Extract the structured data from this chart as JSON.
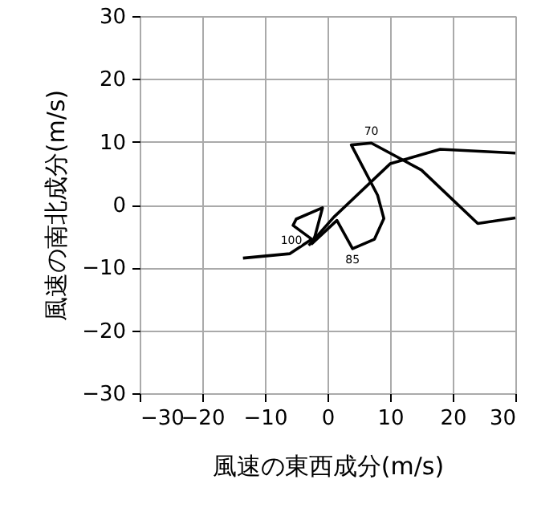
{
  "chart_data": {
    "type": "line",
    "xlabel": "風速の東西成分(m/s)",
    "ylabel": "風速の南北成分(m/s)",
    "xlim": [
      -30,
      30
    ],
    "ylim": [
      -30,
      30
    ],
    "xticks": [
      -30,
      -20,
      -10,
      0,
      10,
      20,
      30
    ],
    "yticks": [
      -30,
      -20,
      -10,
      0,
      10,
      20,
      30
    ],
    "grid": true,
    "marker": "none",
    "line_style": "solid",
    "series": [
      {
        "color": "#000000",
        "x": [
          30,
          18,
          10,
          1,
          -3
        ],
        "values": [
          8.2,
          8.8,
          6.5,
          -2,
          -6.5
        ]
      },
      {
        "color": "#000000",
        "x": [
          -13.5,
          -6,
          -2.5,
          -5.5,
          -5,
          -0.8,
          -2,
          -2.5,
          1.5,
          4,
          7.5,
          9,
          8,
          3.8,
          7,
          15,
          24,
          30
        ],
        "values": [
          -8.5,
          -7.8,
          -5.5,
          -3.3,
          -2.3,
          -0.5,
          -5,
          -6.2,
          -2.5,
          -7,
          -5.5,
          -2.2,
          1.5,
          9.5,
          9.8,
          5.5,
          -3,
          -2.1
        ]
      }
    ],
    "annotations": [
      {
        "text": "100",
        "x": -2,
        "y": -5
      },
      {
        "text": "85",
        "x": 4,
        "y": -7
      },
      {
        "text": "70",
        "x": 7,
        "y": 9.8
      }
    ]
  }
}
